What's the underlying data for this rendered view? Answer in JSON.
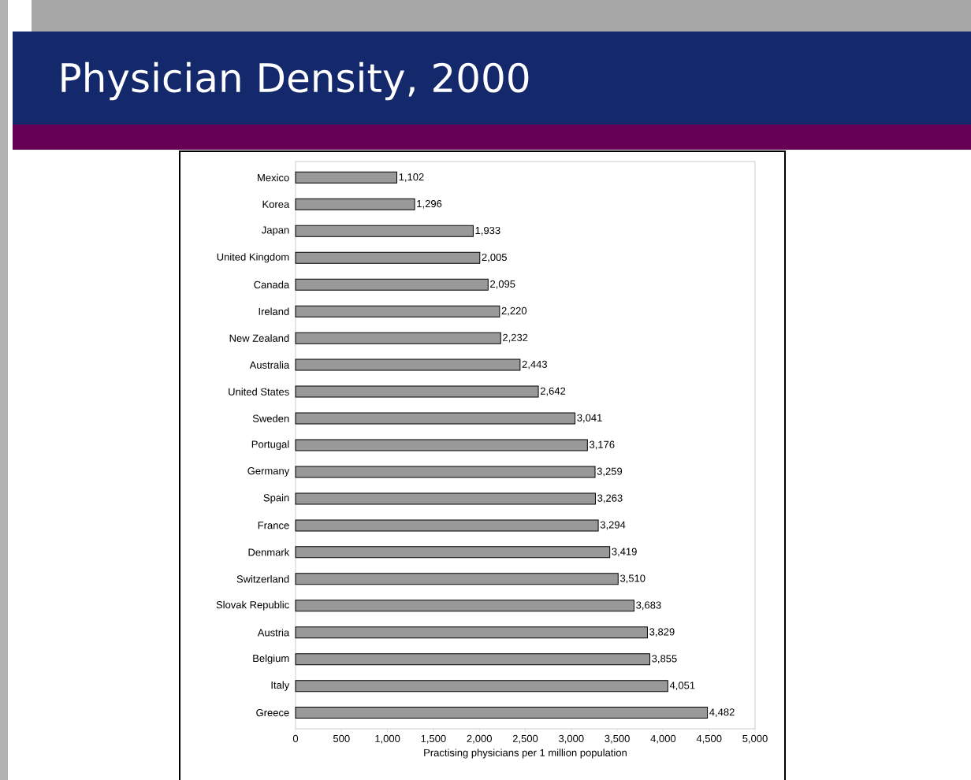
{
  "chart_data": {
    "type": "bar",
    "orientation": "horizontal",
    "title": "Physician Density, 2000",
    "xlabel": "Practising physicians per 1 million population",
    "categories": [
      "Mexico",
      "Korea",
      "Japan",
      "United Kingdom",
      "Canada",
      "Ireland",
      "New Zealand",
      "Australia",
      "United States",
      "Sweden",
      "Portugal",
      "Germany",
      "Spain",
      "France",
      "Denmark",
      "Switzerland",
      "Slovak Republic",
      "Austria",
      "Belgium",
      "Italy",
      "Greece"
    ],
    "values": [
      1102,
      1296,
      1933,
      2005,
      2095,
      2220,
      2232,
      2443,
      2642,
      3041,
      3176,
      3259,
      3263,
      3294,
      3419,
      3510,
      3683,
      3829,
      3855,
      4051,
      4482
    ],
    "value_labels": [
      "1,102",
      "1,296",
      "1,933",
      "2,005",
      "2,095",
      "2,220",
      "2,232",
      "2,443",
      "2,642",
      "3,041",
      "3,176",
      "3,259",
      "3,263",
      "3,294",
      "3,419",
      "3,510",
      "3,683",
      "3,829",
      "3,855",
      "4,051",
      "4,482"
    ],
    "color": "#999999",
    "xlim": [
      0,
      5000
    ],
    "xticks": [
      0,
      500,
      {
        "value": 1000,
        "label": "1,000"
      },
      {
        "value": 1500,
        "label": "1,500"
      },
      {
        "value": 2000,
        "label": "2,000"
      },
      {
        "value": 2500,
        "label": "2,500"
      },
      {
        "value": 3000,
        "label": "3,000"
      },
      {
        "value": 3500,
        "label": "3,500"
      },
      {
        "value": 4000,
        "label": "4,000"
      },
      {
        "value": 4500,
        "label": "4,500"
      },
      {
        "value": 5000,
        "label": "5,000"
      }
    ],
    "data_labels": false
  }
}
